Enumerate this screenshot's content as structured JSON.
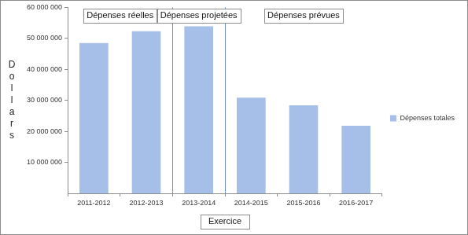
{
  "chart_data": {
    "type": "bar",
    "x_label": "Exercice",
    "y_label": "Dollars",
    "annotations": [
      "Dépenses réelles",
      "Dépenses projetées",
      "Dépenses prévues"
    ],
    "categories": [
      "2011-2012",
      "2012-2013",
      "2013-2014",
      "2014-2015",
      "2015-2016",
      "2016-2017"
    ],
    "series": [
      {
        "name": "Dépenses totales",
        "color": "#a6bfe8",
        "values": [
          48500000,
          52300000,
          53900000,
          30900000,
          28400000,
          21800000
        ]
      }
    ],
    "ylim": [
      0,
      60000000
    ],
    "yticks": [
      {
        "value": 10000000,
        "label": "10 000 000"
      },
      {
        "value": 20000000,
        "label": "20 000 000"
      },
      {
        "value": 30000000,
        "label": "30 000 000"
      },
      {
        "value": 40000000,
        "label": "40 000 000"
      },
      {
        "value": 50000000,
        "label": "50 000 000"
      },
      {
        "value": 60000000,
        "label": "60 000 000"
      }
    ],
    "grid": false,
    "legend": "right"
  }
}
